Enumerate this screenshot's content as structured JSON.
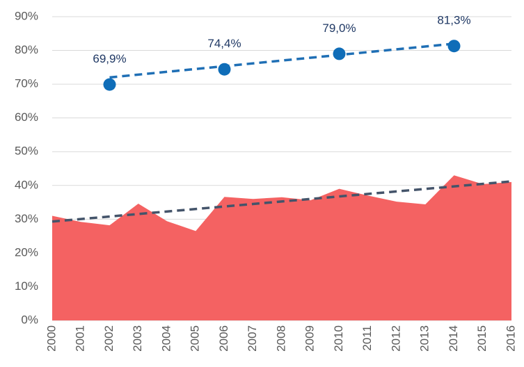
{
  "chart_data": {
    "type": "area",
    "categories": [
      "2000",
      "2001",
      "2002",
      "2003",
      "2004",
      "2005",
      "2006",
      "2007",
      "2008",
      "2009",
      "2010",
      "2011",
      "2012",
      "2013",
      "2014",
      "2015",
      "2016"
    ],
    "values": [
      31,
      29.2,
      28.2,
      34.6,
      29.4,
      26.5,
      36.6,
      36,
      36.5,
      35.6,
      39,
      37,
      35.2,
      34.4,
      43,
      40.4,
      41
    ],
    "color": "#f46262",
    "ylim": [
      0,
      90
    ],
    "yticks": [
      {
        "value": 0,
        "label": "0%"
      },
      {
        "value": 10,
        "label": "10%"
      },
      {
        "value": 20,
        "label": "20%"
      },
      {
        "value": 30,
        "label": "30%"
      },
      {
        "value": 40,
        "label": "40%"
      },
      {
        "value": 50,
        "label": "50%"
      },
      {
        "value": 60,
        "label": "60%"
      },
      {
        "value": 70,
        "label": "70%"
      },
      {
        "value": 80,
        "label": "80%"
      },
      {
        "value": 90,
        "label": "90%"
      }
    ],
    "grid": true,
    "points": {
      "type": "scatter",
      "x": [
        "2002",
        "2006",
        "2010",
        "2014"
      ],
      "values": [
        69.9,
        74.4,
        79.0,
        81.3
      ],
      "value_labels": [
        "69,9%",
        "74,4%",
        "79,0%",
        "81,3%"
      ],
      "color": "#0f6db8",
      "label_color": "#1f3864"
    },
    "trend_lines": [
      {
        "x": [
          "2000",
          "2016"
        ],
        "values": [
          29.3,
          41.2
        ],
        "color": "#44546a"
      },
      {
        "x": [
          "2002",
          "2014"
        ],
        "values": [
          72,
          82
        ],
        "color": "#1f6fb5"
      }
    ]
  }
}
